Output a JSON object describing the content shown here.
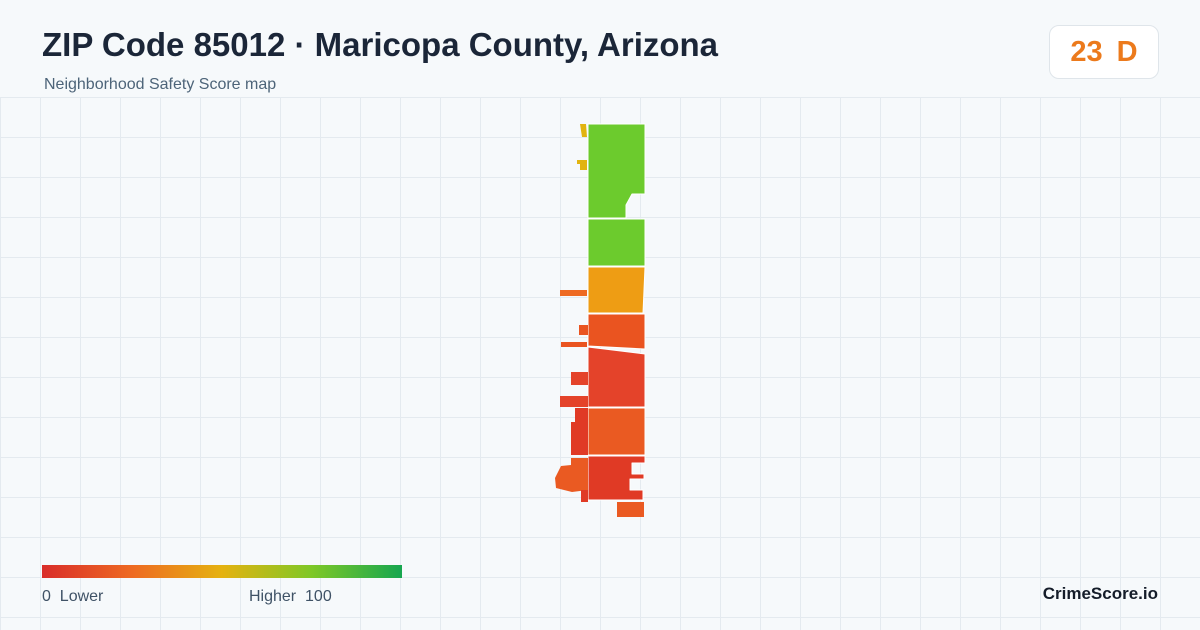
{
  "header": {
    "title": "ZIP Code 85012 · Maricopa County, Arizona",
    "subtitle": "Neighborhood Safety Score map"
  },
  "score": {
    "value": "23",
    "grade": "D",
    "color": "#ec7a1c"
  },
  "map": {
    "description_colors": {
      "high": "#6ccb2d",
      "mid": "#ee9d14",
      "orange_red": "#ea5420",
      "red": "#e03a25",
      "yellow": "#e2b410"
    }
  },
  "legend": {
    "min_value": "0",
    "min_label": "Lower",
    "max_label": "Higher",
    "max_value": "100",
    "gradient": [
      "#d92d2a",
      "#ee6a22",
      "#e5b210",
      "#7ec827",
      "#16a64f"
    ]
  },
  "footer": {
    "brand": "CrimeScore.io"
  }
}
